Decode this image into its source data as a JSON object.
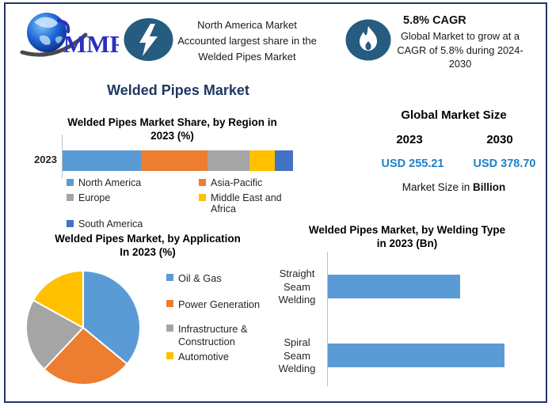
{
  "brand": {
    "name": "MMR"
  },
  "header": {
    "callout1": {
      "icon": "lightning-bolt",
      "lines": [
        "North America Market",
        "Accounted largest share in the",
        "Welded Pipes Market"
      ]
    },
    "callout2": {
      "icon": "flame",
      "heading": "5.8% CAGR",
      "lines": [
        "Global Market to grow at a",
        "CAGR of 5.8% during 2024-",
        "2030"
      ]
    }
  },
  "main_title": "Welded Pipes Market",
  "market_size": {
    "heading": "Global Market Size",
    "year_left": "2023",
    "year_right": "2030",
    "value_left": "USD 255.21",
    "value_right": "USD 378.70",
    "note_prefix": "Market Size in ",
    "note_bold": "Billion"
  },
  "colors": {
    "frame_navy": "#24356B",
    "title_navy": "#1F3864",
    "icon_blue": "#265C80",
    "value_blue": "#1E82C8",
    "axis_gray": "#BFBFBF"
  },
  "chart_data": [
    {
      "id": "region_share",
      "type": "bar",
      "subtype": "stacked-horizontal",
      "title": "Welded Pipes Market Share, by Region in 2023 (%)",
      "title_lines": [
        "Welded Pipes Market Share, by Region in",
        "2023 (%)"
      ],
      "categories": [
        "2023"
      ],
      "unit": "%",
      "values_estimated_from_pixels": true,
      "series": [
        {
          "name": "North America",
          "color": "#5B9BD5",
          "value": 34
        },
        {
          "name": "Asia-Pacific",
          "color": "#ED7D31",
          "value": 29
        },
        {
          "name": "Europe",
          "color": "#A5A5A5",
          "value": 18
        },
        {
          "name": "Middle East and Africa",
          "color": "#FFC000",
          "value": 11
        },
        {
          "name": "South America",
          "color": "#4472C4",
          "value": 8
        }
      ],
      "legend_position": "bottom-two-columns"
    },
    {
      "id": "application_pie",
      "type": "pie",
      "title": "Welded Pipes Market, by Application In 2023 (%)",
      "title_lines": [
        "Welded Pipes Market, by Application",
        "In 2023 (%)"
      ],
      "unit": "%",
      "start_angle_deg": 0,
      "direction": "clockwise",
      "values_estimated_from_pixels": true,
      "slices": [
        {
          "label": "Oil & Gas",
          "color": "#5B9BD5",
          "value": 36
        },
        {
          "label": "Power Generation",
          "color": "#ED7D31",
          "value": 26
        },
        {
          "label": "Infrastructure & Construction",
          "color": "#A5A5A5",
          "value": 21
        },
        {
          "label": "Automotive",
          "color": "#FFC000",
          "value": 17
        }
      ],
      "legend_position": "right"
    },
    {
      "id": "welding_type",
      "type": "bar",
      "subtype": "horizontal",
      "title": "Welded Pipes Market, by Welding Type in 2023 (Bn)",
      "title_lines": [
        "Welded Pipes Market, by Welding Type",
        "in 2023 (Bn)"
      ],
      "unit": "Bn",
      "bar_color": "#5B9BD5",
      "values_estimated_from_pixels": true,
      "categories": [
        "Straight Seam Welding",
        "Spiral Seam Welding"
      ],
      "relative_values": [
        75,
        100
      ],
      "grid": false
    }
  ]
}
